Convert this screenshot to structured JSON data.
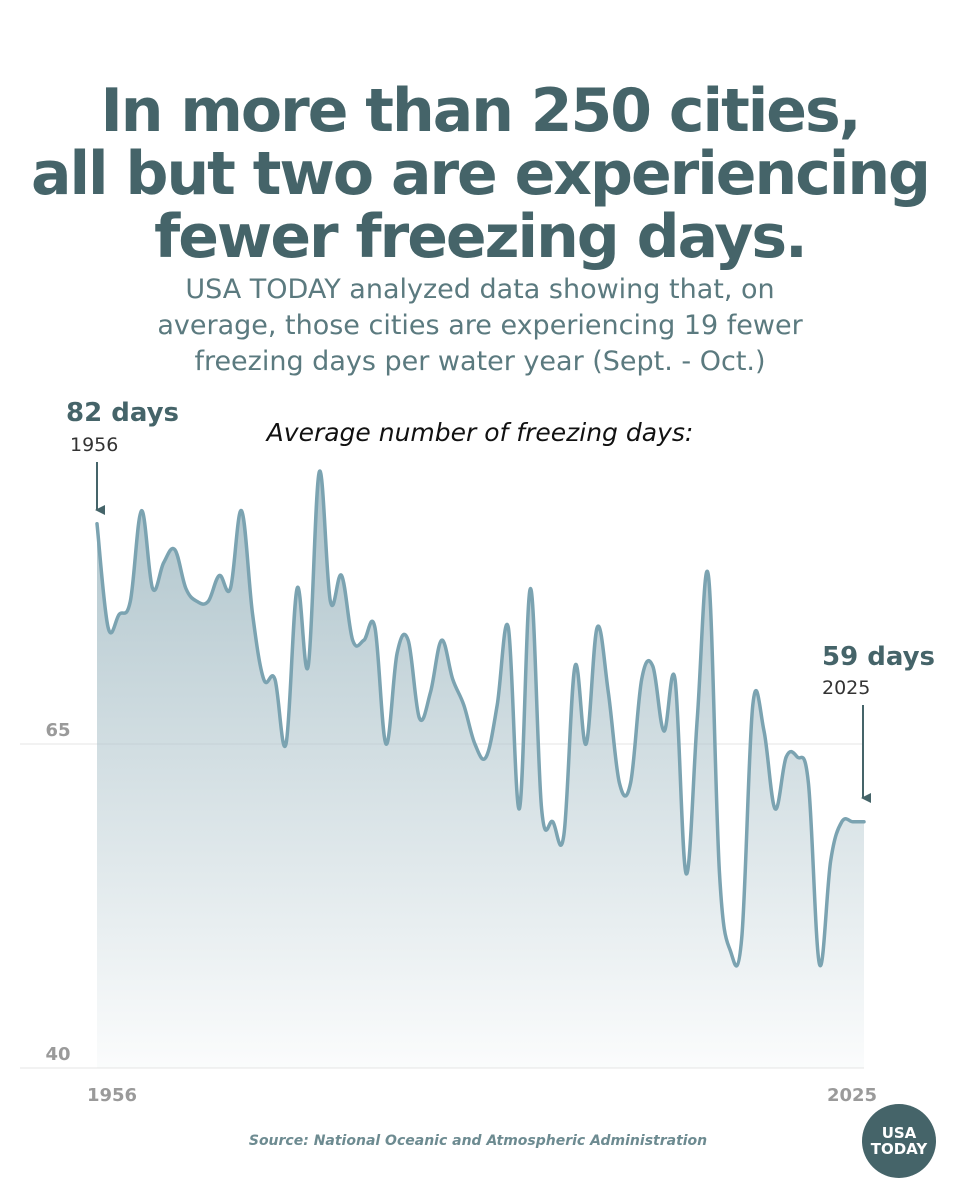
{
  "headline": [
    "In more than 250 cities,",
    "all but two are experiencing",
    "fewer freezing days."
  ],
  "subtitle": [
    "USA TODAY analyzed data showing that, on",
    "average, those cities are experiencing 19 fewer",
    "freezing days per water year (Sept. - Oct.)"
  ],
  "callouts": {
    "start": {
      "value": "82 days",
      "year": "1956"
    },
    "end": {
      "value": "59 days",
      "year": "2025"
    }
  },
  "source": "Source: National Oceanic and Atmospheric Administration",
  "logo": {
    "line1": "USA",
    "line2": "TODAY"
  },
  "colors": {
    "headline": "#456469",
    "line": "#7ba3b1",
    "fill_top": "#a9c0c8",
    "tick_label": "#9a9a9a"
  },
  "chart_data": {
    "type": "area",
    "title": "Average number of freezing days:",
    "xlabel": "",
    "ylabel": "",
    "x_ticks": [
      "1956",
      "2025"
    ],
    "y_ticks": [
      65,
      40
    ],
    "xlim": [
      1956,
      2025
    ],
    "ylim": [
      40,
      90
    ],
    "grid": "horizontal",
    "series": [
      {
        "x": [
          1956,
          1957,
          1958,
          1959,
          1960,
          1961,
          1962,
          1963,
          1964,
          1965,
          1966,
          1967,
          1968,
          1969,
          1970,
          1971,
          1972,
          1973,
          1974,
          1975,
          1976,
          1977,
          1978,
          1979,
          1980,
          1981,
          1982,
          1983,
          1984,
          1985,
          1986,
          1987,
          1988,
          1989,
          1990,
          1991,
          1992,
          1993,
          1994,
          1995,
          1996,
          1997,
          1998,
          1999,
          2000,
          2001,
          2002,
          2003,
          2004,
          2005,
          2006,
          2007,
          2008,
          2009,
          2010,
          2011,
          2012,
          2013,
          2014,
          2015,
          2016,
          2017,
          2018,
          2019,
          2020,
          2021,
          2022,
          2023,
          2024,
          2025
        ],
        "y": [
          82,
          74,
          75,
          76,
          83,
          77,
          79,
          80,
          77,
          76,
          76,
          78,
          77,
          83,
          75,
          70,
          70,
          65,
          77,
          71,
          86,
          76,
          78,
          73,
          73,
          74,
          65,
          72,
          73,
          67,
          69,
          73,
          70,
          68,
          65,
          64,
          68,
          74,
          60,
          77,
          60,
          59,
          58,
          71,
          65,
          74,
          69,
          62,
          62,
          70,
          71,
          66,
          70,
          55,
          67,
          78,
          55,
          49,
          50,
          68,
          66,
          60,
          64,
          64,
          62,
          48,
          56,
          59,
          59,
          59
        ]
      }
    ]
  }
}
